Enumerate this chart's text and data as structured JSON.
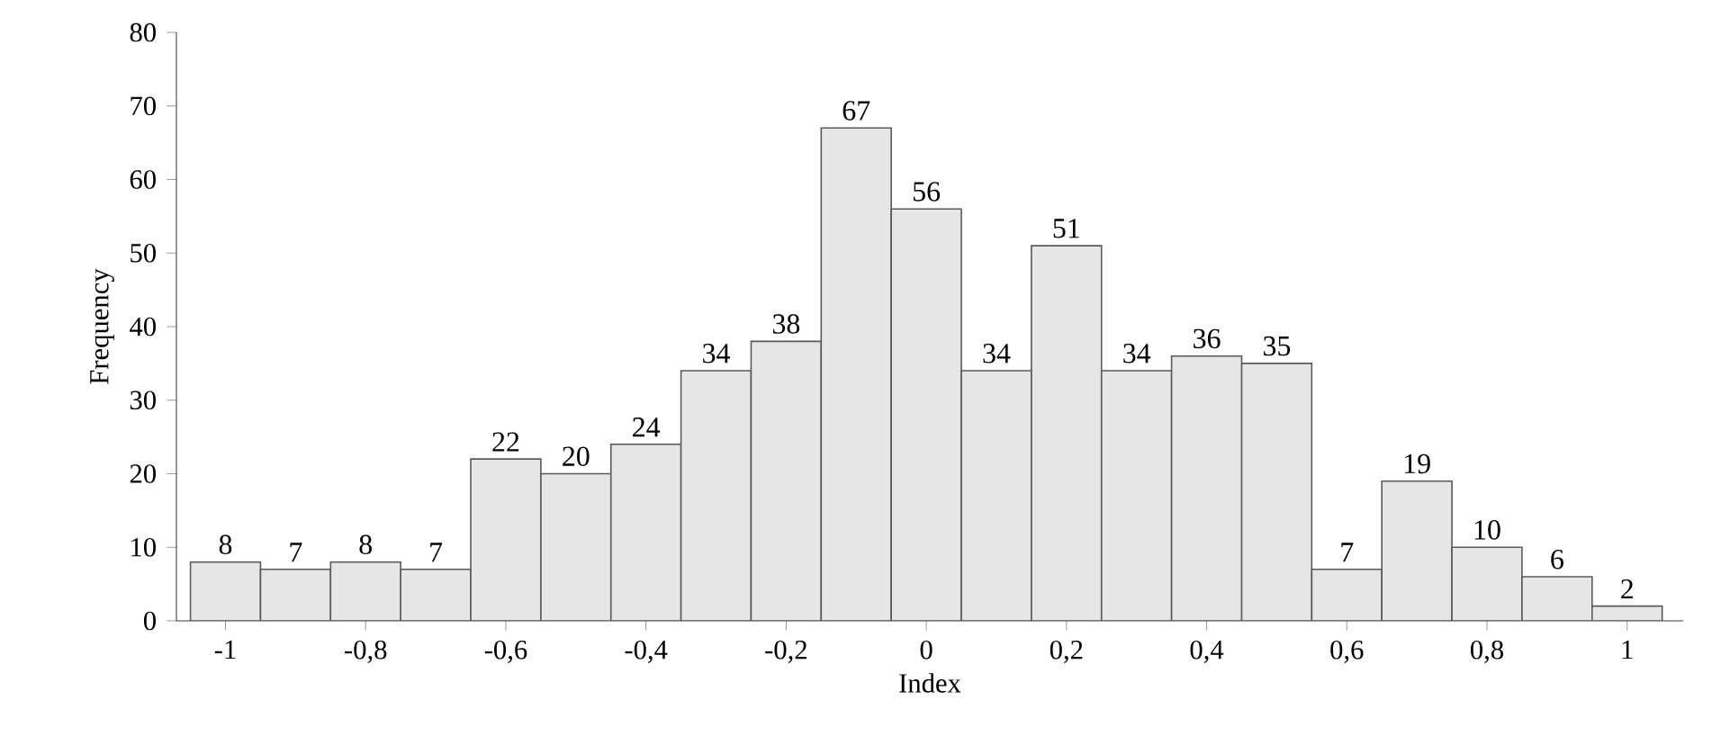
{
  "chart_data": {
    "type": "histogram",
    "xlabel": "Index",
    "ylabel": "Frequency",
    "bins": [
      -1.05,
      -0.95,
      -0.85,
      -0.75,
      -0.65,
      -0.55,
      -0.45,
      -0.35,
      -0.25,
      -0.15,
      -0.05,
      0.05,
      0.15,
      0.25,
      0.35,
      0.45,
      0.55,
      0.65,
      0.75,
      0.85,
      0.95,
      1.05
    ],
    "values": [
      8,
      7,
      8,
      7,
      22,
      20,
      24,
      34,
      38,
      67,
      56,
      34,
      51,
      34,
      36,
      35,
      7,
      19,
      10,
      6,
      2
    ],
    "color": "#e6e6e6",
    "data_labels": true,
    "xlim": [
      -1.07,
      1.08
    ],
    "ylim": [
      0,
      80
    ],
    "xticks": [
      -1,
      {
        "value": -0.8,
        "label": "-0,8"
      },
      {
        "value": -0.6,
        "label": "-0,6"
      },
      {
        "value": -0.4,
        "label": "-0,4"
      },
      {
        "value": -0.2,
        "label": "-0,2"
      },
      0,
      {
        "value": 0.2,
        "label": "0,2"
      },
      {
        "value": 0.4,
        "label": "0,4"
      },
      {
        "value": 0.6,
        "label": "0,6"
      },
      {
        "value": 0.8,
        "label": "0,8"
      },
      1
    ],
    "yticks": [
      0,
      10,
      20,
      30,
      40,
      50,
      60,
      70,
      80
    ]
  }
}
